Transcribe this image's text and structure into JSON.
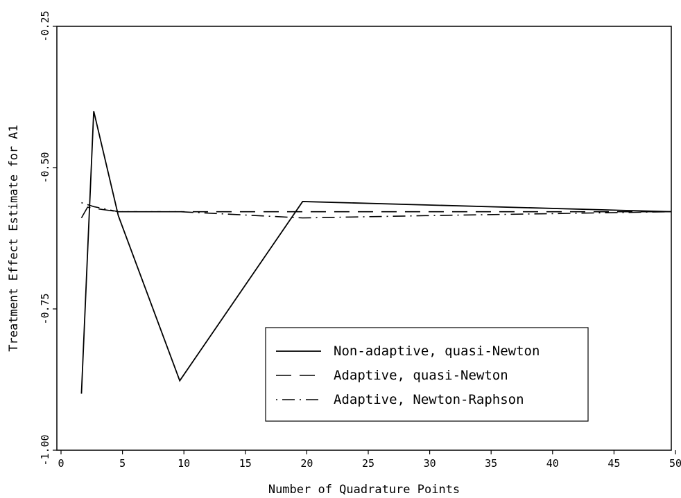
{
  "chart_data": {
    "type": "line",
    "title": "",
    "xlabel": "Number of Quadrature Points",
    "ylabel": "Treatment Effect Estimate for A1",
    "xlim": [
      0,
      50
    ],
    "ylim": [
      -1.0,
      -0.25
    ],
    "xticks": [
      0,
      5,
      10,
      15,
      20,
      25,
      30,
      35,
      40,
      45,
      50
    ],
    "xtick_labels": [
      "0",
      "5",
      "10",
      "15",
      "20",
      "25",
      "30",
      "35",
      "40",
      "45",
      "50"
    ],
    "yticks": [
      -1.0,
      -0.75,
      -0.5,
      -0.25
    ],
    "ytick_labels": [
      "-1.00",
      "-0.75",
      "-0.50",
      "-0.25"
    ],
    "grid": false,
    "legend_placement": "lower-right",
    "series": [
      {
        "name": "Non-adaptive, quasi-Newton",
        "style": "solid",
        "x": [
          2,
          3,
          5,
          10,
          20,
          50
        ],
        "y": [
          -0.9,
          -0.4,
          -0.585,
          -0.877,
          -0.56,
          -0.578
        ]
      },
      {
        "name": "Adaptive, quasi-Newton",
        "style": "dashed",
        "x": [
          2,
          2.5,
          3,
          5,
          10,
          20,
          50
        ],
        "y": [
          -0.589,
          -0.57,
          -0.572,
          -0.578,
          -0.578,
          -0.578,
          -0.578
        ]
      },
      {
        "name": "Adaptive, Newton-Raphson",
        "style": "dashdot",
        "x": [
          2,
          3,
          5,
          10,
          20,
          30,
          50
        ],
        "y": [
          -0.562,
          -0.569,
          -0.578,
          -0.578,
          -0.589,
          -0.585,
          -0.578
        ]
      }
    ]
  }
}
